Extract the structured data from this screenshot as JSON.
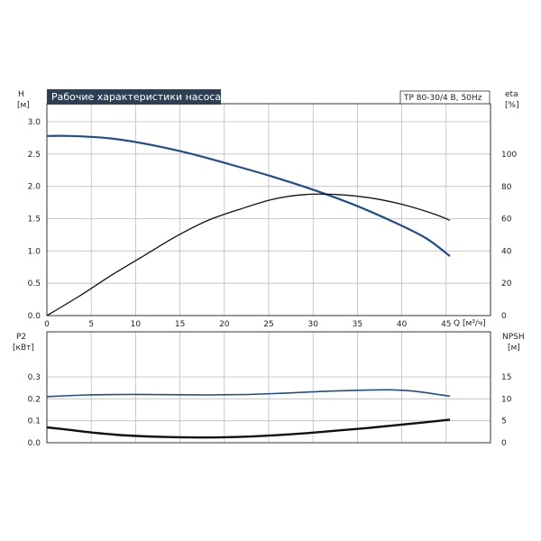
{
  "chart_data": [
    {
      "type": "line",
      "title": "Рабочие характеристики насоса",
      "model_label": "TP 80-30/4 B, 50Hz",
      "xlabel": "Q [м³/ч]",
      "left_axis": {
        "name": "H",
        "unit": "[м]",
        "ticks": [
          "0.0",
          "0.5",
          "1.0",
          "1.5",
          "2.0",
          "2.5",
          "3.0"
        ],
        "range": [
          0,
          3.0
        ]
      },
      "right_axis": {
        "name": "eta",
        "unit": "[%]",
        "ticks": [
          "0",
          "20",
          "40",
          "60",
          "80",
          "100"
        ],
        "range": [
          0,
          120
        ]
      },
      "x_ticks": [
        "0",
        "5",
        "10",
        "15",
        "20",
        "25",
        "30",
        "35",
        "40",
        "45"
      ],
      "xlim": [
        0,
        50
      ],
      "grid": true,
      "series": [
        {
          "axis": "left",
          "color": "#1f4e8c",
          "x": [
            0,
            3,
            8,
            13,
            18,
            23,
            28,
            33,
            38,
            43,
            47,
            50
          ],
          "values": [
            2.78,
            2.78,
            2.74,
            2.64,
            2.5,
            2.33,
            2.15,
            1.95,
            1.72,
            1.45,
            1.2,
            0.92
          ]
        },
        {
          "axis": "right",
          "color": "#111111",
          "x": [
            0,
            4,
            8,
            12,
            16,
            20,
            24,
            28,
            32,
            36,
            40,
            44,
            48,
            50
          ],
          "values": [
            0,
            12,
            25,
            37,
            49,
            59,
            66,
            72,
            75,
            75,
            73,
            69,
            63,
            59
          ]
        }
      ]
    },
    {
      "type": "line",
      "left_axis": {
        "name": "P2",
        "unit": "[кВт]",
        "ticks": [
          "0.0",
          "0.1",
          "0.2",
          "0.3"
        ],
        "range": [
          0,
          0.4
        ]
      },
      "right_axis": {
        "name": "NPSH",
        "unit": "[м]",
        "ticks": [
          "0",
          "5",
          "10",
          "15"
        ],
        "range": [
          0,
          20
        ]
      },
      "xlim": [
        0,
        50
      ],
      "grid": true,
      "series": [
        {
          "axis": "left",
          "color": "#1f4e8c",
          "x": [
            0,
            5,
            10,
            15,
            20,
            25,
            30,
            35,
            40,
            43,
            46,
            50
          ],
          "values": [
            0.21,
            0.218,
            0.22,
            0.219,
            0.218,
            0.22,
            0.227,
            0.235,
            0.24,
            0.241,
            0.233,
            0.212
          ]
        },
        {
          "axis": "left",
          "color": "#111111",
          "x": [
            0,
            3,
            6,
            10,
            15,
            20,
            25,
            30,
            35,
            40,
            45,
            50
          ],
          "values": [
            0.07,
            0.058,
            0.045,
            0.033,
            0.026,
            0.024,
            0.028,
            0.038,
            0.052,
            0.068,
            0.086,
            0.105
          ]
        }
      ]
    }
  ]
}
